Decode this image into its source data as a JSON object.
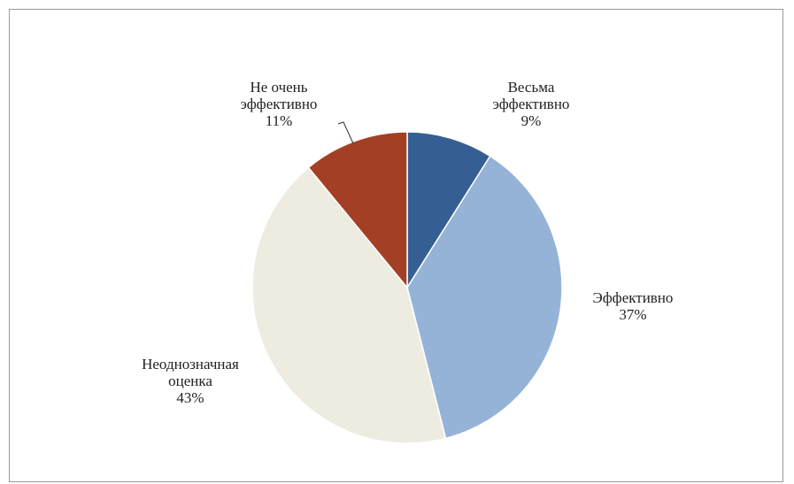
{
  "chart_data": {
    "type": "pie",
    "title": "",
    "start_angle_deg": 0,
    "direction": "clockwise",
    "legend": "none",
    "slices": [
      {
        "label": [
          "Весьма",
          "эффективно"
        ],
        "percent_label": "9%",
        "value": 9,
        "color": "#355f93"
      },
      {
        "label": [
          "Эффективно"
        ],
        "percent_label": "37%",
        "value": 37,
        "color": "#95b3d7"
      },
      {
        "label": [
          "Неоднозначная",
          "оценка"
        ],
        "percent_label": "43%",
        "value": 43,
        "color": "#eeece1"
      },
      {
        "label": [
          "Не очень",
          "эффективно"
        ],
        "percent_label": "11%",
        "value": 11,
        "color": "#a33f25"
      }
    ]
  }
}
